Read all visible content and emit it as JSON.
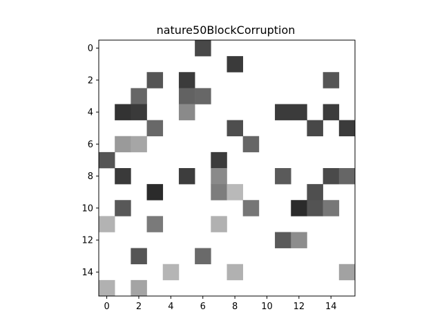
{
  "chart_data": {
    "type": "heatmap",
    "title": "nature50BlockCorruption",
    "xlabel": "",
    "ylabel": "",
    "rows": 16,
    "cols": 16,
    "x_ticks": [
      0,
      2,
      4,
      6,
      8,
      10,
      12,
      14
    ],
    "y_ticks": [
      0,
      2,
      4,
      6,
      8,
      10,
      12,
      14
    ],
    "xlim": [
      -0.5,
      15.5
    ],
    "ylim": [
      15.5,
      -0.5
    ],
    "colormap": "gray",
    "background_color": "#ffffff",
    "cells": [
      {
        "row": 0,
        "col": 6,
        "color": "#484848"
      },
      {
        "row": 1,
        "col": 8,
        "color": "#3a3a3a"
      },
      {
        "row": 2,
        "col": 3,
        "color": "#555555"
      },
      {
        "row": 2,
        "col": 5,
        "color": "#3b3b3b"
      },
      {
        "row": 2,
        "col": 14,
        "color": "#555555"
      },
      {
        "row": 3,
        "col": 2,
        "color": "#666666"
      },
      {
        "row": 3,
        "col": 5,
        "color": "#626262"
      },
      {
        "row": 3,
        "col": 6,
        "color": "#676767"
      },
      {
        "row": 4,
        "col": 1,
        "color": "#333333"
      },
      {
        "row": 4,
        "col": 2,
        "color": "#3a3a3a"
      },
      {
        "row": 4,
        "col": 5,
        "color": "#8a8a8a"
      },
      {
        "row": 4,
        "col": 11,
        "color": "#3b3b3b"
      },
      {
        "row": 4,
        "col": 12,
        "color": "#3b3b3b"
      },
      {
        "row": 4,
        "col": 14,
        "color": "#3c3c3c"
      },
      {
        "row": 5,
        "col": 3,
        "color": "#686868"
      },
      {
        "row": 5,
        "col": 8,
        "color": "#4e4e4e"
      },
      {
        "row": 5,
        "col": 13,
        "color": "#484848"
      },
      {
        "row": 5,
        "col": 15,
        "color": "#3b3b3b"
      },
      {
        "row": 6,
        "col": 1,
        "color": "#9a9a9a"
      },
      {
        "row": 6,
        "col": 2,
        "color": "#a6a6a6"
      },
      {
        "row": 6,
        "col": 9,
        "color": "#666666"
      },
      {
        "row": 7,
        "col": 0,
        "color": "#555555"
      },
      {
        "row": 7,
        "col": 7,
        "color": "#3c3c3c"
      },
      {
        "row": 8,
        "col": 1,
        "color": "#3a3a3a"
      },
      {
        "row": 8,
        "col": 5,
        "color": "#3d3d3d"
      },
      {
        "row": 8,
        "col": 7,
        "color": "#8a8a8a"
      },
      {
        "row": 8,
        "col": 11,
        "color": "#5a5a5a"
      },
      {
        "row": 8,
        "col": 14,
        "color": "#4a4a4a"
      },
      {
        "row": 8,
        "col": 15,
        "color": "#666666"
      },
      {
        "row": 9,
        "col": 3,
        "color": "#2b2b2b"
      },
      {
        "row": 9,
        "col": 7,
        "color": "#7d7d7d"
      },
      {
        "row": 9,
        "col": 8,
        "color": "#b9b9b9"
      },
      {
        "row": 9,
        "col": 13,
        "color": "#4f4f4f"
      },
      {
        "row": 10,
        "col": 1,
        "color": "#585858"
      },
      {
        "row": 10,
        "col": 9,
        "color": "#767676"
      },
      {
        "row": 10,
        "col": 12,
        "color": "#2b2b2b"
      },
      {
        "row": 10,
        "col": 13,
        "color": "#535353"
      },
      {
        "row": 10,
        "col": 14,
        "color": "#777777"
      },
      {
        "row": 11,
        "col": 0,
        "color": "#b3b3b3"
      },
      {
        "row": 11,
        "col": 3,
        "color": "#7a7a7a"
      },
      {
        "row": 11,
        "col": 7,
        "color": "#b1b1b1"
      },
      {
        "row": 12,
        "col": 11,
        "color": "#5a5a5a"
      },
      {
        "row": 12,
        "col": 12,
        "color": "#8d8d8d"
      },
      {
        "row": 13,
        "col": 2,
        "color": "#555555"
      },
      {
        "row": 13,
        "col": 6,
        "color": "#6a6a6a"
      },
      {
        "row": 14,
        "col": 4,
        "color": "#b5b5b5"
      },
      {
        "row": 14,
        "col": 8,
        "color": "#b1b1b1"
      },
      {
        "row": 14,
        "col": 15,
        "color": "#a2a2a2"
      },
      {
        "row": 15,
        "col": 0,
        "color": "#b1b1b1"
      },
      {
        "row": 15,
        "col": 2,
        "color": "#a4a4a4"
      }
    ]
  }
}
